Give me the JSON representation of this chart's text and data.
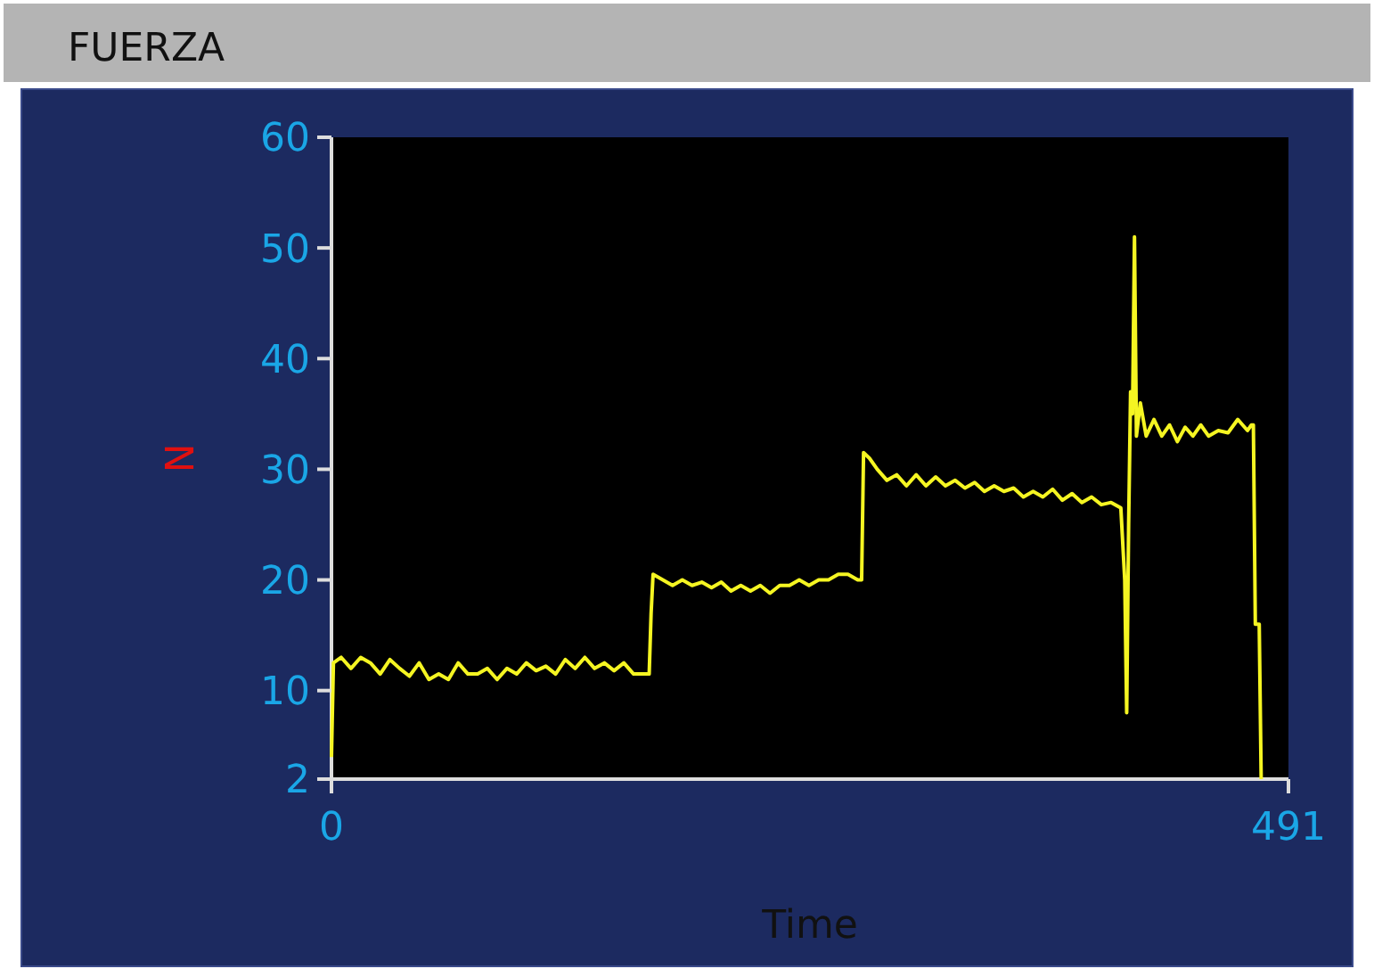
{
  "chart_data": {
    "type": "line",
    "title": "FUERZA",
    "xlabel": "Time",
    "ylabel": "N",
    "xlim": [
      0,
      491
    ],
    "xticks": [
      0,
      491
    ],
    "ylim": [
      2,
      60
    ],
    "yticks": [
      2,
      10,
      20,
      30,
      40,
      50,
      60
    ],
    "grid": false,
    "marker": "none",
    "line_style": "solid",
    "series": [
      {
        "color": "#f5f522",
        "x": [
          0,
          1,
          5,
          10,
          15,
          20,
          25,
          30,
          35,
          40,
          45,
          50,
          55,
          60,
          65,
          70,
          75,
          80,
          85,
          90,
          95,
          100,
          105,
          110,
          115,
          120,
          125,
          130,
          135,
          140,
          145,
          150,
          155,
          160,
          163,
          164,
          165,
          170,
          175,
          180,
          185,
          190,
          195,
          200,
          205,
          210,
          215,
          220,
          225,
          230,
          235,
          240,
          245,
          250,
          255,
          260,
          265,
          270,
          272,
          273,
          276,
          280,
          285,
          290,
          295,
          300,
          305,
          310,
          315,
          320,
          325,
          330,
          335,
          340,
          345,
          350,
          355,
          360,
          365,
          370,
          375,
          380,
          385,
          390,
          395,
          400,
          405,
          407,
          408,
          409,
          410,
          411,
          412,
          413,
          415,
          418,
          422,
          426,
          430,
          434,
          438,
          442,
          446,
          450,
          455,
          460,
          465,
          470,
          472,
          473,
          474,
          476,
          477
        ],
        "values": [
          4,
          12.5,
          13,
          12,
          13,
          12.5,
          11.5,
          12.8,
          12,
          11.3,
          12.5,
          11,
          11.5,
          11,
          12.5,
          11.5,
          11.5,
          12,
          11,
          12,
          11.5,
          12.5,
          11.8,
          12.2,
          11.5,
          12.8,
          12,
          13,
          12,
          12.5,
          11.8,
          12.5,
          11.5,
          11.5,
          11.5,
          17,
          20.5,
          20,
          19.5,
          20,
          19.5,
          19.8,
          19.3,
          19.8,
          19,
          19.5,
          19,
          19.5,
          18.8,
          19.5,
          19.5,
          20,
          19.5,
          20,
          20,
          20.5,
          20.5,
          20,
          20,
          31.5,
          31,
          30,
          29,
          29.5,
          28.5,
          29.5,
          28.5,
          29.3,
          28.5,
          29,
          28.3,
          28.8,
          28,
          28.5,
          28,
          28.3,
          27.5,
          28,
          27.5,
          28.2,
          27.2,
          27.8,
          27,
          27.5,
          26.8,
          27,
          26.5,
          20,
          8,
          25,
          37,
          35,
          51,
          33,
          36,
          33,
          34.5,
          33,
          34,
          32.5,
          33.8,
          33,
          34,
          33,
          33.5,
          33.3,
          34.5,
          33.5,
          34,
          34,
          16,
          16,
          2
        ]
      }
    ]
  }
}
